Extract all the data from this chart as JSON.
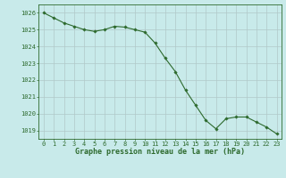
{
  "x": [
    0,
    1,
    2,
    3,
    4,
    5,
    6,
    7,
    8,
    9,
    10,
    11,
    12,
    13,
    14,
    15,
    16,
    17,
    18,
    19,
    20,
    21,
    22,
    23
  ],
  "y": [
    1026.0,
    1025.7,
    1025.4,
    1025.2,
    1025.0,
    1024.9,
    1025.0,
    1025.2,
    1025.15,
    1025.0,
    1024.85,
    1024.2,
    1023.3,
    1022.5,
    1021.4,
    1020.5,
    1019.6,
    1019.1,
    1019.7,
    1019.8,
    1019.8,
    1019.5,
    1019.2,
    1018.8
  ],
  "line_color": "#2d6a2d",
  "marker": "D",
  "markersize": 1.8,
  "linewidth": 0.8,
  "bg_color": "#c8eaea",
  "grid_color": "#b0c8c8",
  "xlabel": "Graphe pression niveau de la mer (hPa)",
  "xlabel_color": "#2d6a2d",
  "xlabel_fontsize": 6.0,
  "tick_color": "#2d6a2d",
  "tick_fontsize": 5.0,
  "ylim": [
    1018.5,
    1026.5
  ],
  "xlim": [
    -0.5,
    23.5
  ],
  "yticks": [
    1019,
    1020,
    1021,
    1022,
    1023,
    1024,
    1025,
    1026
  ],
  "xticks": [
    0,
    1,
    2,
    3,
    4,
    5,
    6,
    7,
    8,
    9,
    10,
    11,
    12,
    13,
    14,
    15,
    16,
    17,
    18,
    19,
    20,
    21,
    22,
    23
  ]
}
